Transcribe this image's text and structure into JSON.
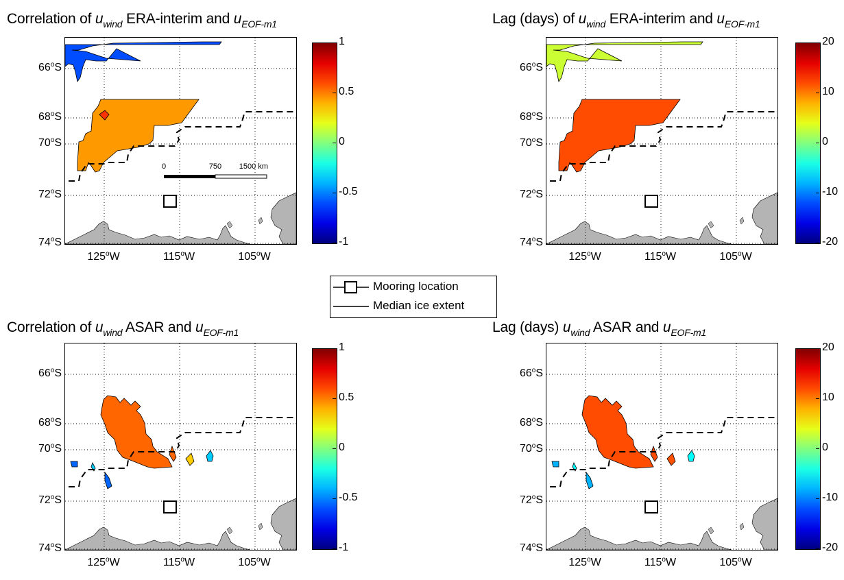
{
  "panels": [
    {
      "title_pre": "Correlation of ",
      "title_var": "u",
      "title_sub": "wind",
      "title_mid": " ERA-interim and ",
      "title_var2": "u",
      "title_sub2": "EOF-m1",
      "colorbar": {
        "ticks": [
          "1",
          "0.5",
          "0",
          "-0.5",
          "-1"
        ],
        "min": -1,
        "max": 1
      },
      "has_scalebar": true,
      "feature": "era-corr"
    },
    {
      "title_pre": "Lag (days) of ",
      "title_var": "u",
      "title_sub": "wind",
      "title_mid": " ERA-interim and ",
      "title_var2": "u",
      "title_sub2": "EOF-m1",
      "colorbar": {
        "ticks": [
          "20",
          "10",
          "0",
          "-10",
          "-20"
        ],
        "min": -20,
        "max": 20
      },
      "has_scalebar": false,
      "feature": "era-lag"
    },
    {
      "title_pre": "Correlation of ",
      "title_var": "u",
      "title_sub": "wind",
      "title_mid": " ASAR and ",
      "title_var2": "u",
      "title_sub2": "EOF-m1",
      "colorbar": {
        "ticks": [
          "1",
          "0.5",
          "0",
          "-0.5",
          "-1"
        ],
        "min": -1,
        "max": 1
      },
      "has_scalebar": false,
      "feature": "asar-corr"
    },
    {
      "title_pre": "Lag (days) ",
      "title_var": "u",
      "title_sub": "wind",
      "title_mid": " ASAR and ",
      "title_var2": "u",
      "title_sub2": "EOF-m1",
      "colorbar": {
        "ticks": [
          "20",
          "10",
          "0",
          "-10",
          "-20"
        ],
        "min": -20,
        "max": 20
      },
      "has_scalebar": false,
      "feature": "asar-lag"
    }
  ],
  "axes": {
    "lat_labels": [
      "66",
      "68",
      "70",
      "72",
      "74"
    ],
    "lat_suffix": "S",
    "lon_labels": [
      "125",
      "115",
      "105"
    ],
    "lon_suffix": "W",
    "degree_mark": "o"
  },
  "scalebar": {
    "labels": [
      "0",
      "750",
      "1500 km"
    ]
  },
  "legend": {
    "mooring_label": "Mooring location",
    "ice_label": "Median ice extent"
  },
  "colors": {
    "land": "#b4b4b4",
    "colormap": "jet"
  },
  "chart_data": {
    "type": "heatmap",
    "xlabel": "",
    "ylabel": "",
    "x_ticks": [
      "125°W",
      "115°W",
      "105°W"
    ],
    "y_ticks": [
      "66°S",
      "68°S",
      "70°S",
      "72°S",
      "74°S"
    ],
    "panels": [
      {
        "title": "Correlation of u_wind ERA-interim and u_EOF-m1",
        "clim": [
          -1,
          1
        ],
        "regions": [
          {
            "area": "north coast strip",
            "value": -0.6
          },
          {
            "area": "central patch ~68-70S",
            "value": 0.45
          }
        ]
      },
      {
        "title": "Lag (days) of u_wind ERA-interim and u_EOF-m1",
        "clim": [
          -20,
          20
        ],
        "regions": [
          {
            "area": "north coast strip",
            "value": 3
          },
          {
            "area": "central patch ~68-70S",
            "value": 12
          }
        ]
      },
      {
        "title": "Correlation of u_wind ASAR and u_EOF-m1",
        "clim": [
          -1,
          1
        ],
        "regions": [
          {
            "area": "central patch ~68-69S",
            "value": 0.55
          },
          {
            "area": "small patches ~69-70S",
            "value": -0.35
          }
        ]
      },
      {
        "title": "Lag (days) u_wind ASAR and u_EOF-m1",
        "clim": [
          -20,
          20
        ],
        "regions": [
          {
            "area": "central patch ~68-69S",
            "value": 12
          },
          {
            "area": "small patches ~69-70S",
            "value": -5
          }
        ]
      }
    ],
    "legend": [
      "Mooring location",
      "Median ice extent"
    ]
  }
}
